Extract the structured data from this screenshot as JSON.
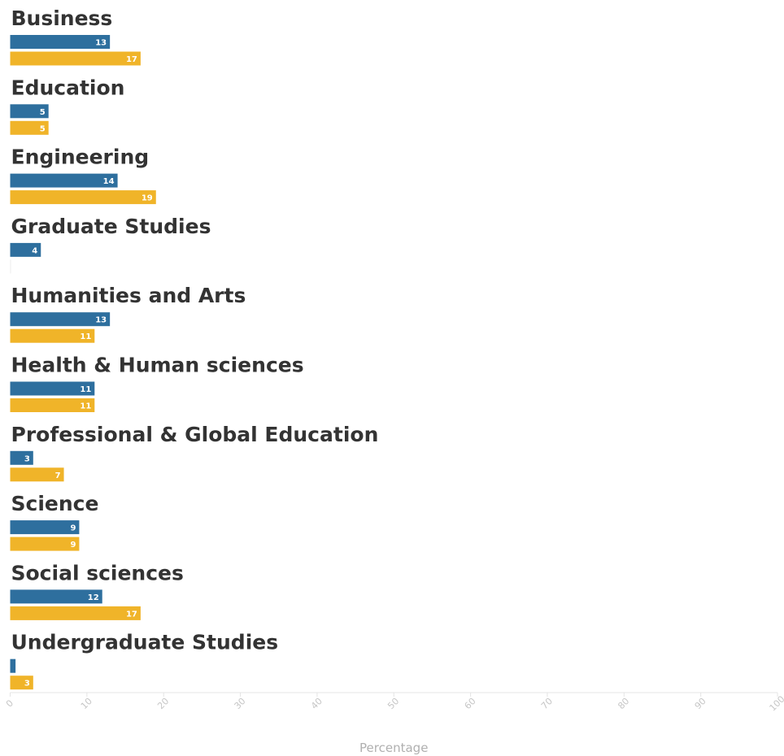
{
  "chart_data": {
    "type": "bar",
    "orientation": "horizontal",
    "categories": [
      "Business",
      "Education",
      "Engineering",
      "Graduate Studies",
      "Humanities and Arts",
      "Health & Human sciences",
      "Professional & Global Education",
      "Science",
      "Social sciences",
      "Undergraduate Studies"
    ],
    "series": [
      {
        "color": "#2e6f9e",
        "values": [
          13,
          5,
          14,
          4,
          13,
          11,
          3,
          9,
          12,
          0.7
        ],
        "labels": [
          "13",
          "5",
          "14",
          "4",
          "13",
          "11",
          "3",
          "9",
          "12",
          ""
        ]
      },
      {
        "color": "#f0b429",
        "values": [
          17,
          5,
          19,
          0,
          11,
          11,
          7,
          9,
          17,
          3
        ],
        "labels": [
          "17",
          "5",
          "19",
          "",
          "11",
          "11",
          "7",
          "9",
          "17",
          "3"
        ]
      }
    ],
    "xlabel": "Percentage",
    "xlim": [
      0,
      100
    ],
    "xticks": [
      "0",
      "10",
      "20",
      "30",
      "40",
      "50",
      "60",
      "70",
      "80",
      "90",
      "100"
    ],
    "grid": false
  }
}
